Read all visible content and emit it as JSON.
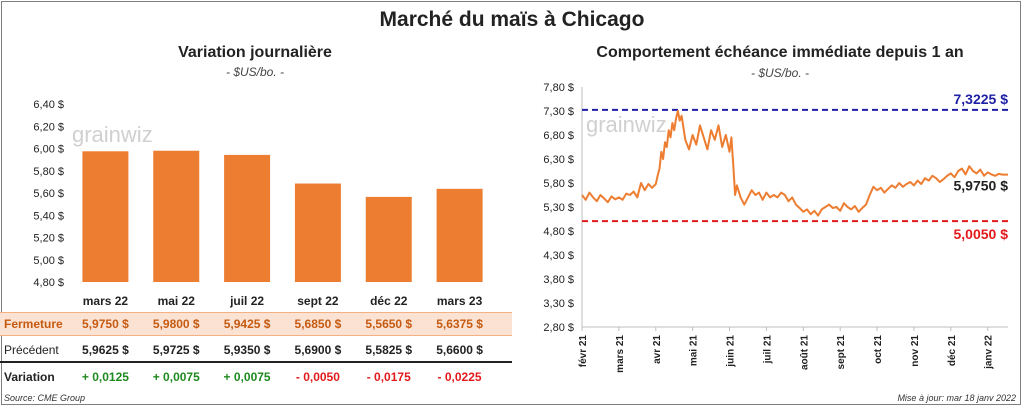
{
  "page": {
    "title": "Marché du maïs à Chicago",
    "source": "Source: CME Group",
    "updated": "Mise à jour: mar 18 janv 2022",
    "watermark": "grainwiz"
  },
  "colors": {
    "bar": "#ed7d31",
    "line": "#ed7d31",
    "high_line": "#1f1fa6",
    "low_line": "#e31a1c",
    "positive": "#1f8a1f",
    "negative": "#e31a1c",
    "close_row_bg": "#fbe2d3"
  },
  "left_panel": {
    "title": "Variation  journalière",
    "unit": "- $US/bo. -"
  },
  "right_panel": {
    "title": "Comportement  échéance immédiate  depuis 1 an",
    "unit": "- $US/bo. -"
  },
  "table": {
    "close_label": "Fermeture",
    "prev_label": "Précédent",
    "var_label": "Variation",
    "close": [
      "5,9750  $",
      "5,9800  $",
      "5,9425  $",
      "5,6850  $",
      "5,5650  $",
      "5,6375  $"
    ],
    "prev": [
      "5,9625  $",
      "5,9725  $",
      "5,9350  $",
      "5,6900  $",
      "5,5825  $",
      "5,6600  $"
    ],
    "variation": [
      "+ 0,0125",
      "+ 0,0075",
      "+ 0,0075",
      "- 0,0050",
      "- 0,0175",
      "- 0,0225"
    ]
  },
  "chart_data": [
    {
      "type": "bar",
      "title": "Variation  journalière",
      "ylabel": "- $US/bo. -",
      "categories": [
        "mars 22",
        "mai 22",
        "juil 22",
        "sept 22",
        "déc 22",
        "mars 23"
      ],
      "values": [
        5.975,
        5.98,
        5.9425,
        5.685,
        5.565,
        5.6375
      ],
      "ylim": [
        4.8,
        6.4
      ],
      "yticks": [
        "4,80 $",
        "5,00 $",
        "5,20 $",
        "5,40 $",
        "5,60 $",
        "5,80 $",
        "6,00 $",
        "6,20 $",
        "6,40 $"
      ]
    },
    {
      "type": "line",
      "title": "Comportement  échéance immédiate  depuis 1 an",
      "ylabel": "- $US/bo. -",
      "ylim": [
        2.8,
        7.8
      ],
      "yticks": [
        "2,80 $",
        "3,30 $",
        "3,80 $",
        "4,30 $",
        "4,80 $",
        "5,30 $",
        "5,80 $",
        "6,30 $",
        "6,80 $",
        "7,30 $",
        "7,80 $"
      ],
      "xticks": [
        "févr 21",
        "mars 21",
        "avr 21",
        "mai 21",
        "juin 21",
        "juil 21",
        "août 21",
        "sept 21",
        "oct 21",
        "nov 21",
        "déc 21",
        "janv 22"
      ],
      "high": 7.3225,
      "high_label": "7,3225 $",
      "low": 5.005,
      "low_label": "5,0050 $",
      "last_label": "5,9750 $",
      "x": [
        0,
        0.1,
        0.2,
        0.3,
        0.4,
        0.5,
        0.6,
        0.7,
        0.8,
        0.9,
        1.0,
        1.1,
        1.2,
        1.3,
        1.4,
        1.5,
        1.6,
        1.7,
        1.8,
        1.9,
        2.0,
        2.05,
        2.1,
        2.15,
        2.2,
        2.25,
        2.3,
        2.35,
        2.4,
        2.45,
        2.5,
        2.55,
        2.6,
        2.65,
        2.7,
        2.8,
        2.9,
        3.0,
        3.1,
        3.2,
        3.3,
        3.4,
        3.5,
        3.6,
        3.7,
        3.8,
        3.9,
        4.0,
        4.05,
        4.1,
        4.15,
        4.2,
        4.3,
        4.4,
        4.5,
        4.6,
        4.7,
        4.8,
        4.9,
        5.0,
        5.1,
        5.2,
        5.3,
        5.4,
        5.5,
        5.6,
        5.7,
        5.8,
        5.9,
        6.0,
        6.1,
        6.2,
        6.3,
        6.4,
        6.5,
        6.6,
        6.7,
        6.8,
        6.9,
        7.0,
        7.1,
        7.2,
        7.3,
        7.4,
        7.5,
        7.6,
        7.7,
        7.8,
        7.9,
        8.0,
        8.1,
        8.2,
        8.3,
        8.4,
        8.5,
        8.6,
        8.7,
        8.8,
        8.9,
        9.0,
        9.1,
        9.2,
        9.3,
        9.4,
        9.5,
        9.6,
        9.7,
        9.8,
        9.9,
        10.0,
        10.1,
        10.2,
        10.3,
        10.4,
        10.5,
        10.6,
        10.7,
        10.8,
        10.9,
        11.0,
        11.1,
        11.2,
        11.3,
        11.4,
        11.55
      ],
      "y": [
        5.55,
        5.45,
        5.6,
        5.5,
        5.42,
        5.55,
        5.48,
        5.4,
        5.52,
        5.46,
        5.5,
        5.45,
        5.58,
        5.55,
        5.62,
        5.5,
        5.8,
        5.65,
        5.78,
        5.7,
        5.78,
        5.95,
        6.1,
        6.45,
        6.3,
        6.65,
        6.55,
        6.9,
        6.75,
        7.05,
        6.9,
        7.15,
        7.3,
        7.1,
        7.2,
        6.7,
        6.5,
        6.8,
        6.6,
        7.0,
        6.75,
        6.5,
        6.9,
        6.7,
        7.0,
        6.55,
        6.8,
        6.45,
        6.75,
        6.2,
        5.55,
        5.75,
        5.5,
        5.35,
        5.5,
        5.65,
        5.55,
        5.6,
        5.45,
        5.6,
        5.5,
        5.55,
        5.5,
        5.6,
        5.55,
        5.42,
        5.5,
        5.35,
        5.28,
        5.2,
        5.25,
        5.15,
        5.22,
        5.12,
        5.25,
        5.3,
        5.35,
        5.28,
        5.3,
        5.22,
        5.38,
        5.3,
        5.25,
        5.32,
        5.2,
        5.28,
        5.35,
        5.55,
        5.72,
        5.65,
        5.7,
        5.6,
        5.68,
        5.75,
        5.7,
        5.8,
        5.72,
        5.78,
        5.82,
        5.75,
        5.85,
        5.78,
        5.9,
        5.85,
        5.95,
        5.9,
        5.82,
        5.88,
        5.95,
        6.0,
        5.92,
        6.05,
        6.1,
        5.98,
        6.15,
        6.05,
        6.0,
        6.08,
        5.95,
        6.02,
        5.98,
        5.95,
        5.99,
        5.975,
        5.975
      ]
    }
  ]
}
